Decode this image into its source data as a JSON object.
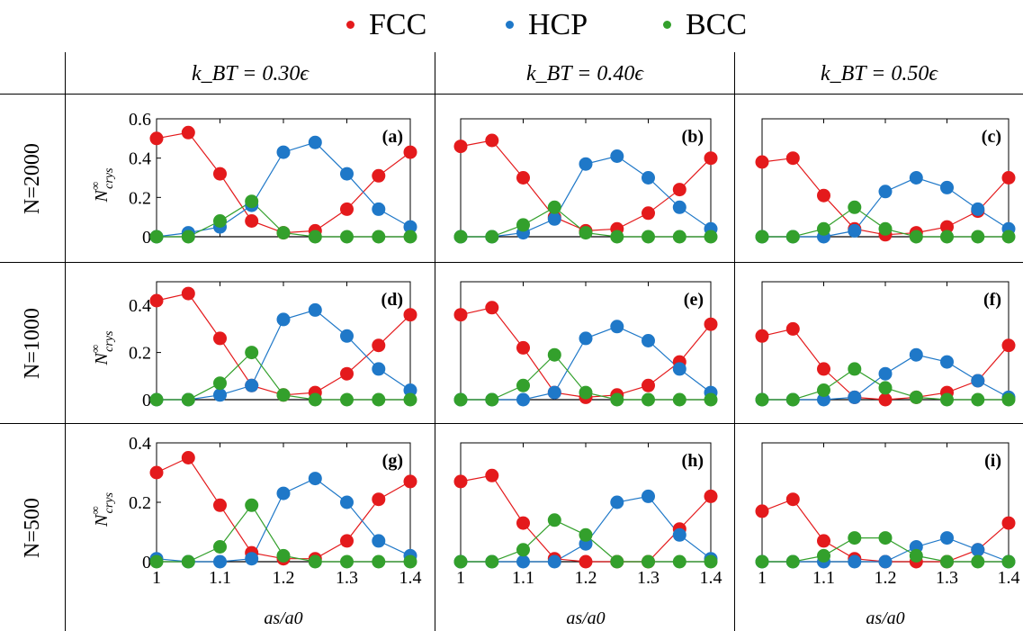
{
  "legend": [
    {
      "label": "FCC",
      "color": "#e41a1c"
    },
    {
      "label": "HCP",
      "color": "#1f78c8"
    },
    {
      "label": "BCC",
      "color": "#33a02c"
    }
  ],
  "column_headers": [
    "k_BT = 0.30ϵ",
    "k_BT = 0.40ϵ",
    "k_BT = 0.50ϵ"
  ],
  "row_headers": [
    "N=2000",
    "N=1000",
    "N=500"
  ],
  "ylabel": "N∞crys",
  "xlabel": "as/a0",
  "chart_data": [
    {
      "type": "line",
      "panel": "(a)",
      "x": [
        1,
        1.05,
        1.1,
        1.15,
        1.2,
        1.25,
        1.3,
        1.35,
        1.4
      ],
      "ylim": [
        0,
        0.6
      ],
      "yticks": [
        "0",
        "0.2",
        "0.4",
        "0.6"
      ],
      "series": [
        {
          "name": "FCC",
          "values": [
            0.5,
            0.53,
            0.32,
            0.08,
            0.02,
            0.03,
            0.14,
            0.31,
            0.43
          ]
        },
        {
          "name": "HCP",
          "values": [
            0,
            0.02,
            0.05,
            0.16,
            0.43,
            0.48,
            0.32,
            0.14,
            0.05
          ]
        },
        {
          "name": "BCC",
          "values": [
            0,
            0,
            0.08,
            0.18,
            0.02,
            0,
            0,
            0,
            0
          ]
        }
      ]
    },
    {
      "type": "line",
      "panel": "(b)",
      "x": [
        1,
        1.05,
        1.1,
        1.15,
        1.2,
        1.25,
        1.3,
        1.35,
        1.4
      ],
      "ylim": [
        0,
        0.6
      ],
      "yticks": [],
      "series": [
        {
          "name": "FCC",
          "values": [
            0.46,
            0.49,
            0.3,
            0.1,
            0.03,
            0.04,
            0.12,
            0.24,
            0.4
          ]
        },
        {
          "name": "HCP",
          "values": [
            0,
            0,
            0.02,
            0.09,
            0.37,
            0.41,
            0.3,
            0.15,
            0.04
          ]
        },
        {
          "name": "BCC",
          "values": [
            0,
            0,
            0.06,
            0.15,
            0.02,
            0,
            0,
            0,
            0
          ]
        }
      ]
    },
    {
      "type": "line",
      "panel": "(c)",
      "x": [
        1,
        1.05,
        1.1,
        1.15,
        1.2,
        1.25,
        1.3,
        1.35,
        1.4
      ],
      "ylim": [
        0,
        0.6
      ],
      "yticks": [],
      "series": [
        {
          "name": "FCC",
          "values": [
            0.38,
            0.4,
            0.21,
            0.04,
            0.01,
            0.02,
            0.05,
            0.13,
            0.3
          ]
        },
        {
          "name": "HCP",
          "values": [
            0,
            0,
            0,
            0.03,
            0.23,
            0.3,
            0.25,
            0.14,
            0.04
          ]
        },
        {
          "name": "BCC",
          "values": [
            0,
            0,
            0.04,
            0.15,
            0.04,
            0,
            0,
            0,
            0
          ]
        }
      ]
    },
    {
      "type": "line",
      "panel": "(d)",
      "x": [
        1,
        1.05,
        1.1,
        1.15,
        1.2,
        1.25,
        1.3,
        1.35,
        1.4
      ],
      "ylim": [
        0,
        0.5
      ],
      "yticks": [
        "0",
        "0.2",
        "0.4"
      ],
      "series": [
        {
          "name": "FCC",
          "values": [
            0.42,
            0.45,
            0.26,
            0.06,
            0.02,
            0.03,
            0.11,
            0.23,
            0.36
          ]
        },
        {
          "name": "HCP",
          "values": [
            0,
            0,
            0.02,
            0.06,
            0.34,
            0.38,
            0.27,
            0.13,
            0.04
          ]
        },
        {
          "name": "BCC",
          "values": [
            0,
            0,
            0.07,
            0.2,
            0.02,
            0,
            0,
            0,
            0
          ]
        }
      ]
    },
    {
      "type": "line",
      "panel": "(e)",
      "x": [
        1,
        1.05,
        1.1,
        1.15,
        1.2,
        1.25,
        1.3,
        1.35,
        1.4
      ],
      "ylim": [
        0,
        0.5
      ],
      "yticks": [],
      "series": [
        {
          "name": "FCC",
          "values": [
            0.36,
            0.39,
            0.22,
            0.03,
            0.01,
            0.02,
            0.06,
            0.16,
            0.32
          ]
        },
        {
          "name": "HCP",
          "values": [
            0,
            0,
            0,
            0.03,
            0.26,
            0.31,
            0.25,
            0.13,
            0.03
          ]
        },
        {
          "name": "BCC",
          "values": [
            0,
            0,
            0.06,
            0.19,
            0.03,
            0,
            0,
            0,
            0
          ]
        }
      ]
    },
    {
      "type": "line",
      "panel": "(f)",
      "x": [
        1,
        1.05,
        1.1,
        1.15,
        1.2,
        1.25,
        1.3,
        1.35,
        1.4
      ],
      "ylim": [
        0,
        0.5
      ],
      "yticks": [],
      "series": [
        {
          "name": "FCC",
          "values": [
            0.27,
            0.3,
            0.13,
            0.01,
            0,
            0.01,
            0.03,
            0.08,
            0.23
          ]
        },
        {
          "name": "HCP",
          "values": [
            0,
            0,
            0,
            0.01,
            0.11,
            0.19,
            0.16,
            0.08,
            0.01
          ]
        },
        {
          "name": "BCC",
          "values": [
            0,
            0,
            0.04,
            0.13,
            0.05,
            0.01,
            0,
            0,
            0
          ]
        }
      ]
    },
    {
      "type": "line",
      "panel": "(g)",
      "x": [
        1,
        1.05,
        1.1,
        1.15,
        1.2,
        1.25,
        1.3,
        1.35,
        1.4
      ],
      "ylim": [
        0,
        0.4
      ],
      "yticks": [
        "0",
        "0.2",
        "0.4"
      ],
      "series": [
        {
          "name": "FCC",
          "values": [
            0.3,
            0.35,
            0.19,
            0.03,
            0.01,
            0.01,
            0.07,
            0.21,
            0.27
          ]
        },
        {
          "name": "HCP",
          "values": [
            0.01,
            0,
            0,
            0.01,
            0.23,
            0.28,
            0.2,
            0.07,
            0.02
          ]
        },
        {
          "name": "BCC",
          "values": [
            0,
            0,
            0.05,
            0.19,
            0.02,
            0,
            0,
            0,
            0
          ]
        }
      ]
    },
    {
      "type": "line",
      "panel": "(h)",
      "x": [
        1,
        1.05,
        1.1,
        1.15,
        1.2,
        1.25,
        1.3,
        1.35,
        1.4
      ],
      "ylim": [
        0,
        0.4
      ],
      "yticks": [],
      "series": [
        {
          "name": "FCC",
          "values": [
            0.27,
            0.29,
            0.13,
            0.01,
            0,
            0,
            0,
            0.11,
            0.22
          ]
        },
        {
          "name": "HCP",
          "values": [
            0,
            0,
            0,
            0,
            0.06,
            0.2,
            0.22,
            0.09,
            0.01
          ]
        },
        {
          "name": "BCC",
          "values": [
            0,
            0,
            0.04,
            0.14,
            0.09,
            0,
            0,
            0,
            0
          ]
        }
      ]
    },
    {
      "type": "line",
      "panel": "(i)",
      "x": [
        1,
        1.05,
        1.1,
        1.15,
        1.2,
        1.25,
        1.3,
        1.35,
        1.4
      ],
      "ylim": [
        0,
        0.4
      ],
      "yticks": [],
      "series": [
        {
          "name": "FCC",
          "values": [
            0.17,
            0.21,
            0.07,
            0.01,
            0,
            0,
            0,
            0.04,
            0.13
          ]
        },
        {
          "name": "HCP",
          "values": [
            0,
            0,
            0,
            0,
            0,
            0.05,
            0.08,
            0.04,
            0
          ]
        },
        {
          "name": "BCC",
          "values": [
            0,
            0,
            0.02,
            0.08,
            0.08,
            0.02,
            0,
            0,
            0
          ]
        }
      ]
    }
  ],
  "xticks": [
    "1",
    "1.1",
    "1.2",
    "1.3",
    "1.4"
  ]
}
